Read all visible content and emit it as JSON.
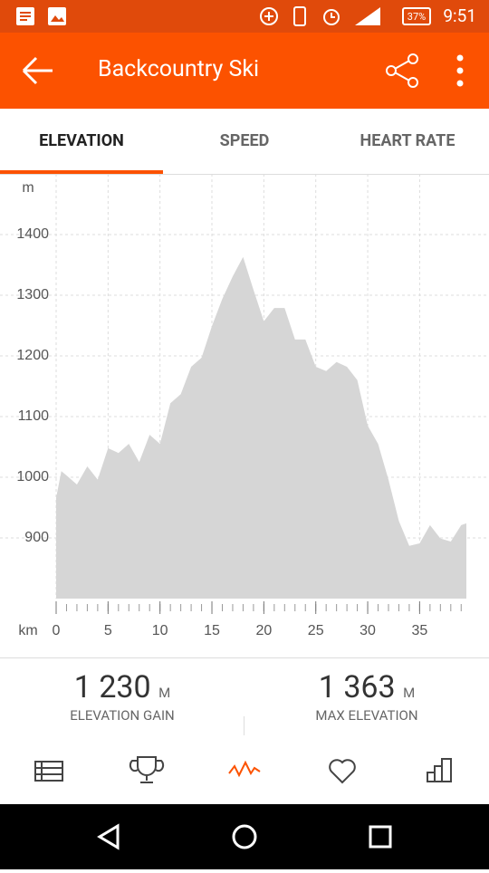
{
  "status_bar": {
    "battery": "37%",
    "time": "9:51"
  },
  "app_bar": {
    "title": "Backcountry Ski"
  },
  "tabs": [
    "ELEVATION",
    "SPEED",
    "HEART RATE"
  ],
  "chart_data": {
    "type": "area",
    "y_unit": "m",
    "x_unit": "km",
    "color": "#d6d6d6",
    "x": [
      0,
      0.5,
      1,
      2,
      3,
      4,
      5,
      6,
      7,
      8,
      9,
      10,
      11,
      12,
      13,
      14,
      15,
      16,
      17,
      18,
      19,
      20,
      21,
      22,
      23,
      24,
      25,
      26,
      27,
      28,
      29,
      30,
      31,
      32,
      33,
      34,
      35,
      36,
      37,
      38,
      39,
      39.5
    ],
    "values": [
      966,
      1010,
      1003,
      988,
      1018,
      996,
      1048,
      1040,
      1055,
      1025,
      1070,
      1055,
      1122,
      1137,
      1182,
      1197,
      1249,
      1294,
      1331,
      1363,
      1309,
      1257,
      1279,
      1279,
      1227,
      1227,
      1182,
      1175,
      1190,
      1182,
      1160,
      1085,
      1055,
      996,
      928,
      887,
      891,
      921,
      899,
      894,
      921,
      924
    ],
    "xlim": [
      0,
      39.5
    ],
    "ylim": [
      800,
      1500
    ],
    "xticks": [
      0,
      5,
      10,
      15,
      20,
      25,
      30,
      35
    ],
    "xminor_ticks": [
      0,
      1,
      2,
      3,
      4,
      5,
      6,
      7,
      8,
      9,
      10,
      11,
      12,
      13,
      14,
      15,
      16,
      17,
      18,
      19,
      20,
      21,
      22,
      23,
      24,
      25,
      26,
      27,
      28,
      29,
      30,
      31,
      32,
      33,
      34,
      35,
      36,
      37,
      38,
      39
    ],
    "yticks": [
      900,
      1000,
      1100,
      1200,
      1300,
      1400
    ],
    "grid": true
  },
  "stats": [
    {
      "value": "1 230",
      "unit": "M",
      "label": "ELEVATION GAIN"
    },
    {
      "value": "1 363",
      "unit": "M",
      "label": "MAX ELEVATION"
    }
  ]
}
